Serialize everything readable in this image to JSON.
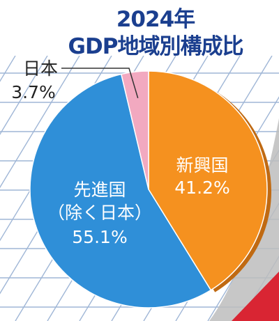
{
  "chart_data": {
    "type": "pie",
    "title": "2024年",
    "subtitle": "GDP地域別構成比",
    "slices": [
      {
        "label": "新興国",
        "value": 41.2,
        "value_text": "41.2%",
        "color": "#f5911f"
      },
      {
        "label_lines": [
          "先進国",
          "（除く日本）"
        ],
        "value": 55.1,
        "value_text": "55.1%",
        "color": "#2f8fd8"
      },
      {
        "label": "日本",
        "value": 3.7,
        "value_text": "3.7%",
        "color": "#f2a9c0"
      }
    ],
    "legend": "none",
    "start": "12 o'clock, clockwise"
  },
  "colors": {
    "title": "#1b3f8f",
    "grid_lines": "#9fb6d6",
    "shadow": "#b7b7b7",
    "rim_shadow": "#c06a12",
    "accent_corner": "#d92533"
  }
}
